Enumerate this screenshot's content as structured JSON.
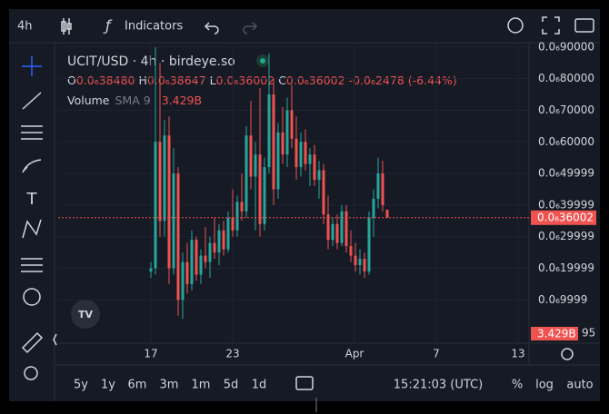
{
  "toolbar": {
    "interval": "4h",
    "indicators": "Indicators"
  },
  "legend": {
    "title": "UCIT/USD · 4h · birdeye.so",
    "o_label": "O",
    "o": "0.0₆38480",
    "h_label": "H",
    "h": "0.0₆38647",
    "l_label": "L",
    "l": "0.0₆36002",
    "c_label": "C",
    "c": "0.0₆36002",
    "change": "-0.0₆2478 (-6.44%)",
    "volume": "Volume",
    "sma": "SMA 9",
    "volume_value": "3.429B"
  },
  "chart_data": {
    "type": "candlestick",
    "up_color": "#26a69a",
    "down_color": "#ef5350",
    "ylim": [
      -3.7e-08,
      9.11e-07
    ],
    "yticks": [
      {
        "value": 9e-07,
        "label": "0.0₆90000"
      },
      {
        "value": 8e-07,
        "label": "0.0₆80000"
      },
      {
        "value": 7e-07,
        "label": "0.0₆70000"
      },
      {
        "value": 6e-07,
        "label": "0.0₆60000"
      },
      {
        "value": 4.9999e-07,
        "label": "0.0₆49999"
      },
      {
        "value": 3.9999e-07,
        "label": "0.0₆39999"
      },
      {
        "value": 2.9999e-07,
        "label": "0.0₆29999"
      },
      {
        "value": 1.9999e-07,
        "label": "0.0₆19999"
      },
      {
        "value": 9.999e-08,
        "label": "0.0₆9999"
      }
    ],
    "xticks": [
      "17",
      "23",
      "Apr",
      "7",
      "13"
    ],
    "last_price": {
      "value": 3.6002e-07,
      "label": "0.0₆36002"
    },
    "volume_label": "3.429B",
    "volume_axis_label": "95",
    "grid": true,
    "ohlc": [
      [
        1.9e-07,
        2.2e-07,
        1.7e-07,
        2e-07
      ],
      [
        2e-07,
        9e-07,
        1.8e-07,
        6e-07
      ],
      [
        6e-07,
        8.5e-07,
        3e-07,
        3.5e-07
      ],
      [
        3.5e-07,
        6.7e-07,
        3e-07,
        6.2e-07
      ],
      [
        6.2e-07,
        6.8e-07,
        1.5e-07,
        2e-07
      ],
      [
        2e-07,
        5.8e-07,
        1.8e-07,
        5e-07
      ],
      [
        5e-07,
        5.2e-07,
        5e-08,
        1e-07
      ],
      [
        1e-07,
        2.5e-07,
        4e-08,
        2.2e-07
      ],
      [
        2.2e-07,
        2.8e-07,
        1.2e-07,
        1.5e-07
      ],
      [
        1.5e-07,
        3.2e-07,
        1.3e-07,
        2.9e-07
      ],
      [
        2.9e-07,
        3e-07,
        1.6e-07,
        1.8e-07
      ],
      [
        1.8e-07,
        2.6e-07,
        1.5e-07,
        2.4e-07
      ],
      [
        2.4e-07,
        3.3e-07,
        2e-07,
        2.2e-07
      ],
      [
        2.2e-07,
        3e-07,
        1.7e-07,
        2.8e-07
      ],
      [
        2.8e-07,
        3.6e-07,
        2.3e-07,
        2.5e-07
      ],
      [
        2.5e-07,
        3.4e-07,
        2.1e-07,
        3.2e-07
      ],
      [
        3.2e-07,
        3.5e-07,
        2.4e-07,
        2.6e-07
      ],
      [
        2.6e-07,
        3.8e-07,
        2.5e-07,
        3.6e-07
      ],
      [
        3.6e-07,
        4.5e-07,
        3e-07,
        3.2e-07
      ],
      [
        3.2e-07,
        4.3e-07,
        3e-07,
        4.1e-07
      ],
      [
        4.1e-07,
        5e-07,
        3.5e-07,
        3.8e-07
      ],
      [
        3.8e-07,
        6.5e-07,
        3.6e-07,
        6.2e-07
      ],
      [
        6.2e-07,
        7.3e-07,
        4.5e-07,
        4.9e-07
      ],
      [
        4.9e-07,
        6e-07,
        3.2e-07,
        5.6e-07
      ],
      [
        5.6e-07,
        7.7e-07,
        3e-07,
        3.4e-07
      ],
      [
        3.4e-07,
        5.5e-07,
        3.2e-07,
        5.2e-07
      ],
      [
        5.2e-07,
        8.8e-07,
        5e-07,
        7.5e-07
      ],
      [
        7.5e-07,
        8e-07,
        4e-07,
        4.5e-07
      ],
      [
        4.5e-07,
        6.6e-07,
        4.2e-07,
        6.3e-07
      ],
      [
        6.3e-07,
        7.1e-07,
        5.3e-07,
        5.6e-07
      ],
      [
        5.6e-07,
        7.4e-07,
        5.2e-07,
        7e-07
      ],
      [
        7e-07,
        7.8e-07,
        5.8e-07,
        6.1e-07
      ],
      [
        6.1e-07,
        6.8e-07,
        4.8e-07,
        5.2e-07
      ],
      [
        5.2e-07,
        6.3e-07,
        4.9e-07,
        6e-07
      ],
      [
        6e-07,
        6.4e-07,
        5.1e-07,
        5.3e-07
      ],
      [
        5.3e-07,
        5.8e-07,
        4.6e-07,
        5.6e-07
      ],
      [
        5.6e-07,
        5.9e-07,
        4.6e-07,
        4.8e-07
      ],
      [
        4.8e-07,
        5.4e-07,
        4.2e-07,
        5.1e-07
      ],
      [
        5.1e-07,
        5.3e-07,
        3.4e-07,
        3.7e-07
      ],
      [
        3.7e-07,
        4.3e-07,
        2.6e-07,
        2.9e-07
      ],
      [
        2.9e-07,
        3.6e-07,
        2.7e-07,
        3.4e-07
      ],
      [
        3.4e-07,
        3.7e-07,
        2.6e-07,
        2.8e-07
      ],
      [
        2.8e-07,
        4e-07,
        2.7e-07,
        3.8e-07
      ],
      [
        3.8e-07,
        4e-07,
        2.5e-07,
        2.7e-07
      ],
      [
        2.7e-07,
        3.2e-07,
        2.2e-07,
        2.4e-07
      ],
      [
        2.4e-07,
        2.8e-07,
        1.9e-07,
        2.1e-07
      ],
      [
        2.1e-07,
        2.6e-07,
        1.8e-07,
        2.3e-07
      ],
      [
        2.3e-07,
        2.5e-07,
        1.7e-07,
        1.9e-07
      ],
      [
        1.9e-07,
        3.8e-07,
        1.8e-07,
        3.6e-07
      ],
      [
        3.6e-07,
        4.5e-07,
        3e-07,
        4.2e-07
      ],
      [
        4.2e-07,
        5.5e-07,
        3.9e-07,
        5e-07
      ],
      [
        5e-07,
        5.4e-07,
        3.8e-07,
        4e-07
      ],
      [
        3.848e-07,
        3.8647e-07,
        3.6002e-07,
        3.6002e-07
      ]
    ]
  },
  "ranges": [
    "5y",
    "1y",
    "6m",
    "3m",
    "1m",
    "5d",
    "1d"
  ],
  "footer": {
    "clock": "15:21:03 (UTC)",
    "percent": "%",
    "log": "log",
    "auto": "auto"
  }
}
